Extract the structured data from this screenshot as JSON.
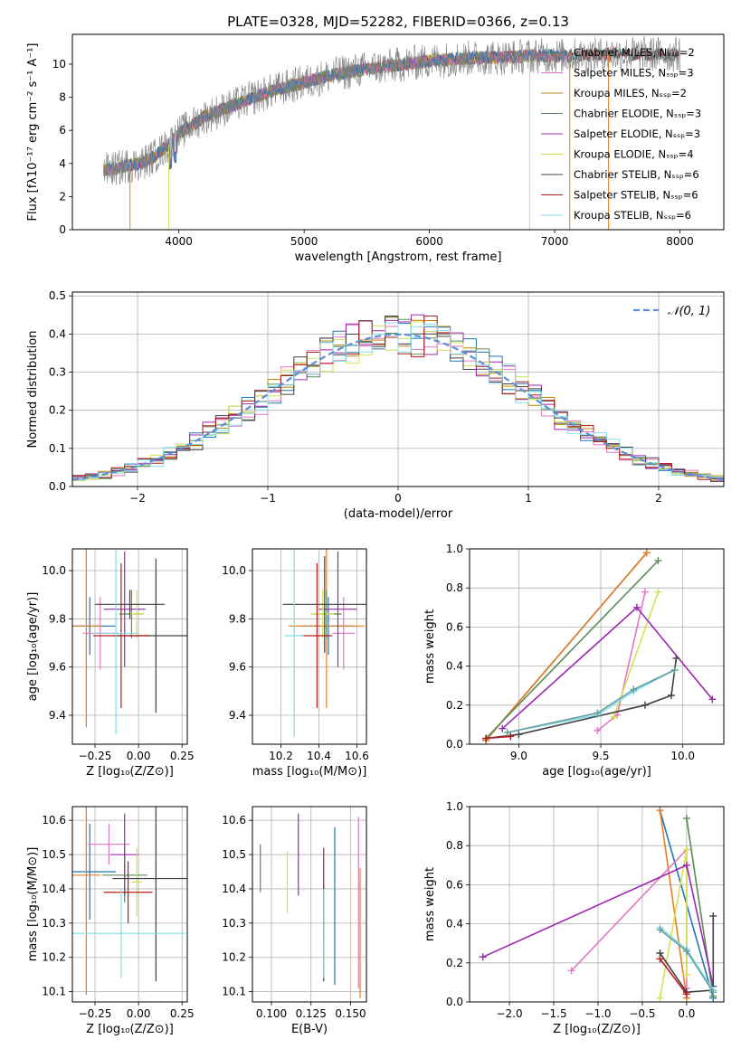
{
  "figure": {
    "title": "PLATE=0328, MJD=52282, FIBERID=0366, z=0.13"
  },
  "chart_data": [
    {
      "id": "spectrum",
      "type": "line",
      "xlabel": "wavelength [Angstrom, rest frame]",
      "ylabel": "Flux [fλ10⁻¹⁷ erg cm⁻² s⁻¹ A⁻¹]",
      "xlim": [
        3150,
        8350
      ],
      "ylim": [
        0,
        11.8
      ],
      "xticks": [
        4000,
        5000,
        6000,
        7000,
        8000
      ],
      "xtick_labels": [
        "4000",
        "5000",
        "6000",
        "7000",
        "8000"
      ],
      "yticks": [
        0,
        2,
        4,
        6,
        8,
        10
      ],
      "ytick_labels": [
        "0",
        "2",
        "4",
        "6",
        "8",
        "10"
      ],
      "grid": false,
      "legend_position": "upper-right",
      "continuum": {
        "x": [
          3400,
          3500,
          3600,
          3700,
          3800,
          3900,
          4000,
          4200,
          4400,
          4600,
          4800,
          5000,
          5200,
          5400,
          5600,
          5800,
          6000,
          6200,
          6400,
          6600,
          6800,
          7000,
          7200,
          7400,
          7600,
          7800,
          8000
        ],
        "y": [
          3.6,
          3.7,
          3.9,
          4.0,
          4.4,
          5.0,
          5.8,
          6.8,
          7.4,
          8.0,
          8.5,
          8.9,
          9.3,
          9.6,
          9.8,
          10.0,
          10.2,
          10.3,
          10.4,
          10.4,
          10.5,
          10.5,
          10.5,
          10.6,
          10.6,
          10.6,
          10.6
        ]
      },
      "series": [
        {
          "name": "Chabrier MILES, Nₛₛₚ=2",
          "color": "#1f77b4",
          "x_max": 7120
        },
        {
          "name": "Salpeter MILES, Nₛₛₚ=3",
          "color": "#e377c2",
          "x_max": 7120
        },
        {
          "name": "Kroupa MILES, Nₛₛₚ=2",
          "color": "#b8860b",
          "x_max": 7120
        },
        {
          "name": "Chabrier ELODIE, Nₛₛₚ=3",
          "color": "#5a8a5a",
          "x_max": 6800
        },
        {
          "name": "Salpeter ELODIE, Nₛₛₚ=3",
          "color": "#9c27b0",
          "x_max": 6800
        },
        {
          "name": "Kroupa ELODIE, Nₛₛₚ=4",
          "color": "#d4e157",
          "x_max": 6800
        },
        {
          "name": "Chabrier STELIB, Nₛₛₚ=6",
          "color": "#424242",
          "x_max": 8000
        },
        {
          "name": "Salpeter STELIB, Nₛₛₚ=6",
          "color": "#b71c1c",
          "x_max": 8000
        },
        {
          "name": "Kroupa STELIB, Nₛₛₚ=6",
          "color": "#80deea",
          "x_max": 8000
        }
      ],
      "data_color": "#808080"
    },
    {
      "id": "residuals",
      "type": "line",
      "xlabel": "(data-model)/error",
      "ylabel": "Normed distribution",
      "xlim": [
        -2.5,
        2.5
      ],
      "ylim": [
        0,
        0.51
      ],
      "xticks": [
        -2,
        -1,
        0,
        1,
        2
      ],
      "xtick_labels": [
        "−2",
        "−1",
        "0",
        "1",
        "2"
      ],
      "yticks": [
        0,
        0.1,
        0.2,
        0.3,
        0.4,
        0.5
      ],
      "ytick_labels": [
        "0.0",
        "0.1",
        "0.2",
        "0.3",
        "0.4",
        "0.5"
      ],
      "grid": true,
      "legend_position": "upper-right",
      "gaussian": {
        "name": "𝒩(0, 1)",
        "color": "#5b8fd9",
        "mean": 0,
        "sigma": 1
      },
      "histogram_bin_width": 0.1
    },
    {
      "id": "age-vs-Z",
      "type": "scatter",
      "xlabel": "Z [log₁₀(Z/Z⊙)]",
      "ylabel": "age  [log₁₀(age/yr)]",
      "xlim": [
        -0.38,
        0.28
      ],
      "ylim": [
        9.28,
        10.09
      ],
      "xticks": [
        -0.25,
        0,
        0.25
      ],
      "xtick_labels": [
        "−0.25",
        "0.00",
        "0.25"
      ],
      "yticks": [
        9.4,
        9.6,
        9.8,
        10.0
      ],
      "ytick_labels": [
        "9.4",
        "9.6",
        "9.8",
        "10.0"
      ],
      "grid": true,
      "points": [
        {
          "x": -0.28,
          "y": 9.77,
          "xerr": 0.15,
          "yerr": 0.12,
          "color": "#1f77b4"
        },
        {
          "x": -0.22,
          "y": 9.74,
          "xerr": 0.1,
          "yerr": 0.15,
          "color": "#e377c2"
        },
        {
          "x": -0.3,
          "y": 9.77,
          "xerr": 0.08,
          "yerr": 0.42,
          "color": "#e67e22"
        },
        {
          "x": -0.04,
          "y": 9.82,
          "xerr": 0.07,
          "yerr": 0.1,
          "color": "#5a8a5a"
        },
        {
          "x": -0.08,
          "y": 9.84,
          "xerr": 0.12,
          "yerr": 0.24,
          "color": "#9c27b0"
        },
        {
          "x": -0.01,
          "y": 9.82,
          "xerr": 0.04,
          "yerr": 0.1,
          "color": "#d4e157"
        },
        {
          "x": 0.1,
          "y": 9.73,
          "xerr": 0.25,
          "yerr": 0.32,
          "color": "#424242"
        },
        {
          "x": -0.05,
          "y": 9.86,
          "xerr": 0.2,
          "yerr": 0.06,
          "color": "#424242"
        },
        {
          "x": -0.1,
          "y": 9.73,
          "xerr": 0.16,
          "yerr": 0.3,
          "color": "#b71c1c"
        },
        {
          "x": -0.13,
          "y": 9.74,
          "xerr": 0.13,
          "yerr": 0.42,
          "color": "#80deea"
        }
      ]
    },
    {
      "id": "age-vs-mass",
      "type": "scatter",
      "xlabel": "mass [log₁₀(M/M⊙)]",
      "ylabel": "",
      "xlim": [
        10.05,
        10.65
      ],
      "ylim": [
        9.28,
        10.09
      ],
      "xticks": [
        10.2,
        10.4,
        10.6
      ],
      "xtick_labels": [
        "10.2",
        "10.4",
        "10.6"
      ],
      "yticks": [
        9.4,
        9.6,
        9.8,
        10.0
      ],
      "ytick_labels": [
        "9.4",
        "9.6",
        "9.8",
        "10.0"
      ],
      "grid": true,
      "points": [
        {
          "x": 10.45,
          "y": 9.77,
          "xerr": 0.14,
          "yerr": 0.12,
          "color": "#1f77b4"
        },
        {
          "x": 10.53,
          "y": 9.74,
          "xerr": 0.06,
          "yerr": 0.15,
          "color": "#e377c2"
        },
        {
          "x": 10.44,
          "y": 9.77,
          "xerr": 0.2,
          "yerr": 0.34,
          "color": "#e67e22"
        },
        {
          "x": 10.44,
          "y": 9.82,
          "xerr": 0.08,
          "yerr": 0.1,
          "color": "#5a8a5a"
        },
        {
          "x": 10.5,
          "y": 9.84,
          "xerr": 0.1,
          "yerr": 0.24,
          "color": "#9c27b0"
        },
        {
          "x": 10.42,
          "y": 9.82,
          "xerr": 0.06,
          "yerr": 0.1,
          "color": "#d4e157"
        },
        {
          "x": 10.43,
          "y": 9.86,
          "xerr": 0.22,
          "yerr": 0.2,
          "color": "#424242"
        },
        {
          "x": 10.39,
          "y": 9.73,
          "xerr": 0.08,
          "yerr": 0.3,
          "color": "#b71c1c"
        },
        {
          "x": 10.27,
          "y": 9.73,
          "xerr": 0.05,
          "yerr": 0.42,
          "color": "#80deea"
        }
      ]
    },
    {
      "id": "mass-weight-vs-age",
      "type": "line",
      "xlabel": "age  [log₁₀(age/yr)]",
      "ylabel": "mass weight",
      "xlim": [
        8.7,
        10.25
      ],
      "ylim": [
        0,
        1.0
      ],
      "xticks": [
        9.0,
        9.5,
        10.0
      ],
      "xtick_labels": [
        "9.0",
        "9.5",
        "10.0"
      ],
      "yticks": [
        0,
        0.2,
        0.4,
        0.6,
        0.8,
        1.0
      ],
      "ytick_labels": [
        "0.0",
        "0.2",
        "0.4",
        "0.6",
        "0.8",
        "1.0"
      ],
      "grid": true,
      "series": [
        {
          "color": "#1f77b4",
          "x": [
            8.8,
            9.78
          ],
          "y": [
            0.02,
            0.98
          ]
        },
        {
          "color": "#e67e22",
          "x": [
            8.8,
            9.78
          ],
          "y": [
            0.02,
            0.98
          ]
        },
        {
          "color": "#5a8a5a",
          "x": [
            8.8,
            9.85
          ],
          "y": [
            0.03,
            0.94
          ]
        },
        {
          "color": "#e377c2",
          "x": [
            9.48,
            9.6,
            9.77
          ],
          "y": [
            0.07,
            0.15,
            0.78
          ]
        },
        {
          "color": "#d4e157",
          "x": [
            9.58,
            9.85
          ],
          "y": [
            0.14,
            0.78
          ]
        },
        {
          "color": "#9c27b0",
          "x": [
            8.9,
            9.72,
            10.18
          ],
          "y": [
            0.08,
            0.7,
            0.23
          ]
        },
        {
          "color": "#424242",
          "x": [
            8.8,
            9.0,
            9.77,
            9.93,
            9.96
          ],
          "y": [
            0.03,
            0.05,
            0.2,
            0.25,
            0.44
          ]
        },
        {
          "color": "#b71c1c",
          "x": [
            8.8,
            8.95
          ],
          "y": [
            0.03,
            0.04
          ]
        },
        {
          "color": "#80deea",
          "x": [
            8.93,
            9.48,
            9.7,
            9.95
          ],
          "y": [
            0.06,
            0.15,
            0.27,
            0.38
          ]
        },
        {
          "color": "#6a9e9e",
          "x": [
            8.93,
            9.48,
            9.7,
            9.95
          ],
          "y": [
            0.06,
            0.16,
            0.28,
            0.38
          ]
        }
      ]
    },
    {
      "id": "mass-vs-Z",
      "type": "scatter",
      "xlabel": "Z [log₁₀(Z/Z⊙)]",
      "ylabel": "mass [log₁₀(M/M⊙)]",
      "xlim": [
        -0.38,
        0.28
      ],
      "ylim": [
        10.07,
        10.64
      ],
      "xticks": [
        -0.25,
        0,
        0.25
      ],
      "xtick_labels": [
        "−0.25",
        "0.00",
        "0.25"
      ],
      "yticks": [
        10.1,
        10.2,
        10.3,
        10.4,
        10.5,
        10.6
      ],
      "ytick_labels": [
        "10.1",
        "10.2",
        "10.3",
        "10.4",
        "10.5",
        "10.6"
      ],
      "grid": true,
      "points": [
        {
          "x": -0.28,
          "y": 10.45,
          "xerr": 0.15,
          "yerr": 0.14,
          "color": "#1f77b4"
        },
        {
          "x": -0.17,
          "y": 10.53,
          "xerr": 0.12,
          "yerr": 0.06,
          "color": "#e377c2"
        },
        {
          "x": -0.3,
          "y": 10.44,
          "xerr": 0.08,
          "yerr": 0.35,
          "color": "#e67e22"
        },
        {
          "x": -0.08,
          "y": 10.44,
          "xerr": 0.13,
          "yerr": 0.08,
          "color": "#5a8a5a"
        },
        {
          "x": -0.08,
          "y": 10.5,
          "xerr": 0.08,
          "yerr": 0.12,
          "color": "#9c27b0"
        },
        {
          "x": -0.01,
          "y": 10.42,
          "xerr": 0.03,
          "yerr": 0.1,
          "color": "#d4e157"
        },
        {
          "x": 0.1,
          "y": 10.43,
          "xerr": 0.25,
          "yerr": 0.3,
          "color": "#424242"
        },
        {
          "x": -0.06,
          "y": 10.39,
          "xerr": 0.14,
          "yerr": 0.09,
          "color": "#b71c1c"
        },
        {
          "x": -0.1,
          "y": 10.27,
          "xerr": 0.37,
          "yerr": 0.13,
          "color": "#80deea"
        }
      ]
    },
    {
      "id": "mass-vs-EBV",
      "type": "scatter",
      "xlabel": "E(B-V)",
      "ylabel": "",
      "xlim": [
        0.088,
        0.16
      ],
      "ylim": [
        10.07,
        10.64
      ],
      "xticks": [
        0.1,
        0.125,
        0.15
      ],
      "xtick_labels": [
        "0.100",
        "0.125",
        "0.150"
      ],
      "yticks": [
        10.1,
        10.2,
        10.3,
        10.4,
        10.5,
        10.6
      ],
      "ytick_labels": [
        "10.1",
        "10.2",
        "10.3",
        "10.4",
        "10.5",
        "10.6"
      ],
      "grid": true,
      "points": [
        {
          "x": 0.093,
          "y": 10.46,
          "yerr": 0.07,
          "color": "#5a8a5a"
        },
        {
          "x": 0.11,
          "y": 10.42,
          "yerr": 0.09,
          "color": "#d4e157"
        },
        {
          "x": 0.117,
          "y": 10.5,
          "yerr": 0.12,
          "color": "#9c27b0"
        },
        {
          "x": 0.133,
          "y": 10.39,
          "yerr": 0.13,
          "color": "#b71c1c"
        },
        {
          "x": 0.133,
          "y": 10.27,
          "yerr": 0.14,
          "color": "#424242"
        },
        {
          "x": 0.133,
          "y": 10.27,
          "yerr": 0.13,
          "color": "#80deea"
        },
        {
          "x": 0.14,
          "y": 10.35,
          "yerr": 0.23,
          "color": "#1f77b4"
        },
        {
          "x": 0.155,
          "y": 10.36,
          "yerr": 0.25,
          "color": "#e377c2"
        },
        {
          "x": 0.156,
          "y": 10.27,
          "yerr": 0.19,
          "color": "#e67e22"
        }
      ]
    },
    {
      "id": "mass-weight-vs-Z",
      "type": "line",
      "xlabel": "Z [log₁₀(Z/Z⊙)]",
      "ylabel": "mass weight",
      "xlim": [
        -2.45,
        0.42
      ],
      "ylim": [
        0,
        1.0
      ],
      "xticks": [
        -2.0,
        -1.5,
        -1.0,
        -0.5,
        0.0
      ],
      "xtick_labels": [
        "−2.0",
        "−1.5",
        "−1.0",
        "−0.5",
        "0.0"
      ],
      "yticks": [
        0,
        0.2,
        0.4,
        0.6,
        0.8,
        1.0
      ],
      "ytick_labels": [
        "0.0",
        "0.2",
        "0.4",
        "0.6",
        "0.8",
        "1.0"
      ],
      "grid": true,
      "series": [
        {
          "color": "#1f77b4",
          "x": [
            -0.3,
            0.3
          ],
          "y": [
            0.98,
            0.02
          ]
        },
        {
          "color": "#e67e22",
          "x": [
            -0.3,
            0.0
          ],
          "y": [
            0.98,
            0.02
          ]
        },
        {
          "color": "#5a8a5a",
          "x": [
            0.0,
            0.3
          ],
          "y": [
            0.94,
            0.03
          ]
        },
        {
          "color": "#e377c2",
          "x": [
            -1.3,
            0.0,
            0.0
          ],
          "y": [
            0.16,
            0.78,
            0.07
          ]
        },
        {
          "color": "#d4e157",
          "x": [
            -0.3,
            0.0,
            0.0
          ],
          "y": [
            0.02,
            0.78,
            0.14
          ]
        },
        {
          "color": "#9c27b0",
          "x": [
            -2.3,
            0.0,
            0.3
          ],
          "y": [
            0.23,
            0.7,
            0.08
          ]
        },
        {
          "color": "#424242",
          "x": [
            -0.3,
            0.0,
            0.3,
            0.3
          ],
          "y": [
            0.25,
            0.05,
            0.06,
            0.44
          ]
        },
        {
          "color": "#b71c1c",
          "x": [
            -0.3,
            0.0
          ],
          "y": [
            0.22,
            0.04
          ]
        },
        {
          "color": "#80deea",
          "x": [
            -0.3,
            0.0,
            0.3
          ],
          "y": [
            0.38,
            0.27,
            0.06
          ]
        },
        {
          "color": "#6a9e9e",
          "x": [
            -0.3,
            0.0,
            0.3
          ],
          "y": [
            0.37,
            0.26,
            0.05
          ]
        }
      ]
    }
  ]
}
